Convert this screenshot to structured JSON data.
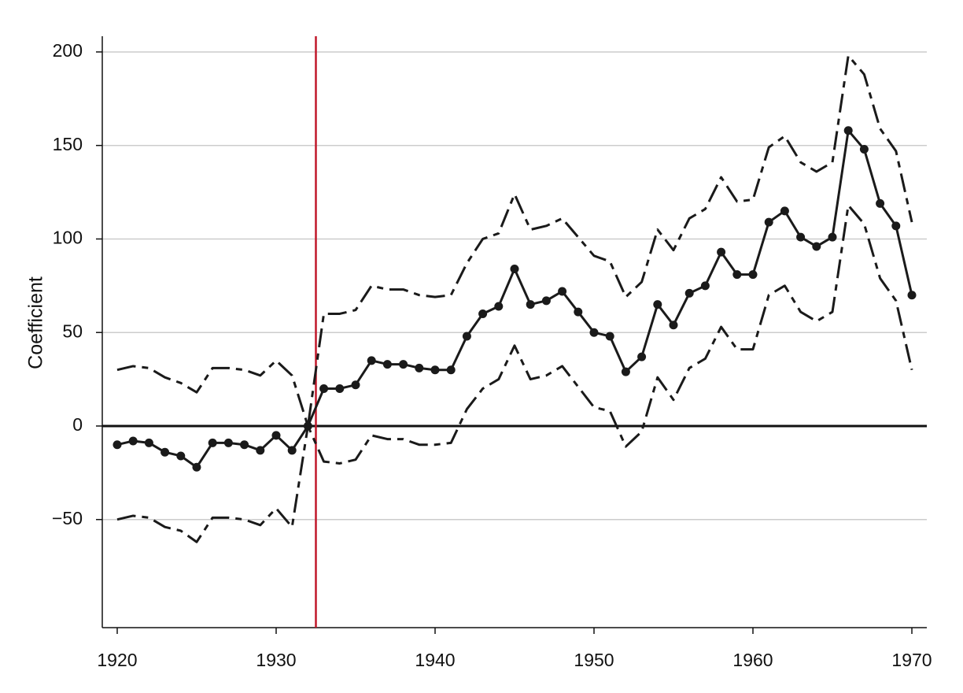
{
  "chart_data": {
    "type": "line",
    "y_label": "Coefficient",
    "x": [
      1920,
      1921,
      1922,
      1923,
      1924,
      1925,
      1926,
      1927,
      1928,
      1929,
      1930,
      1931,
      1932,
      1933,
      1934,
      1935,
      1936,
      1937,
      1938,
      1939,
      1940,
      1941,
      1942,
      1943,
      1944,
      1945,
      1946,
      1947,
      1948,
      1949,
      1950,
      1951,
      1952,
      1953,
      1954,
      1955,
      1956,
      1957,
      1958,
      1959,
      1960,
      1961,
      1962,
      1963,
      1964,
      1965,
      1966,
      1967,
      1968,
      1969,
      1970
    ],
    "series": [
      {
        "color": "#1a1a1a",
        "style": "solid",
        "markers": true,
        "values": [
          -10,
          -8,
          -9,
          -14,
          -16,
          -22,
          -9,
          -9,
          -10,
          -13,
          -5,
          -13,
          0,
          20,
          20,
          22,
          35,
          33,
          33,
          31,
          30,
          30,
          48,
          60,
          64,
          84,
          65,
          67,
          72,
          61,
          50,
          48,
          29,
          37,
          65,
          54,
          71,
          75,
          93,
          81,
          81,
          109,
          115,
          101,
          96,
          101,
          158,
          148,
          119,
          107,
          70
        ]
      },
      {
        "color": "#1a1a1a",
        "style": "dashed",
        "markers": false,
        "values": [
          30,
          32,
          31,
          26,
          23,
          18,
          31,
          31,
          30,
          27,
          35,
          27,
          0,
          60,
          60,
          62,
          75,
          73,
          73,
          70,
          69,
          70,
          87,
          100,
          103,
          124,
          105,
          107,
          111,
          101,
          91,
          88,
          69,
          77,
          105,
          94,
          111,
          116,
          133,
          120,
          121,
          149,
          155,
          141,
          136,
          141,
          198,
          188,
          159,
          147,
          109
        ]
      },
      {
        "color": "#1a1a1a",
        "style": "dashed",
        "markers": false,
        "values": [
          -50,
          -48,
          -49,
          -54,
          -56,
          -62,
          -49,
          -49,
          -50,
          -53,
          -44,
          -54,
          0,
          -19,
          -20,
          -18,
          -5,
          -7,
          -7,
          -10,
          -10,
          -9,
          9,
          20,
          25,
          43,
          25,
          27,
          32,
          21,
          10,
          8,
          -11,
          -3,
          26,
          14,
          31,
          36,
          53,
          41,
          41,
          70,
          75,
          61,
          56,
          61,
          118,
          108,
          79,
          67,
          30
        ]
      }
    ],
    "xlim": [
      1919.06,
      1970.94
    ],
    "xticks": [
      1920,
      1930,
      1940,
      1950,
      1960,
      1970
    ],
    "ylim": [
      -107.8,
      208.4
    ],
    "yticks": [
      {
        "value": -50,
        "label": "−50"
      },
      0,
      50,
      100,
      150,
      200
    ],
    "grid": true,
    "grid_color": "#cccccc",
    "zero_line": true,
    "vline": {
      "x": 1932.5,
      "color": "#c0182a"
    }
  }
}
